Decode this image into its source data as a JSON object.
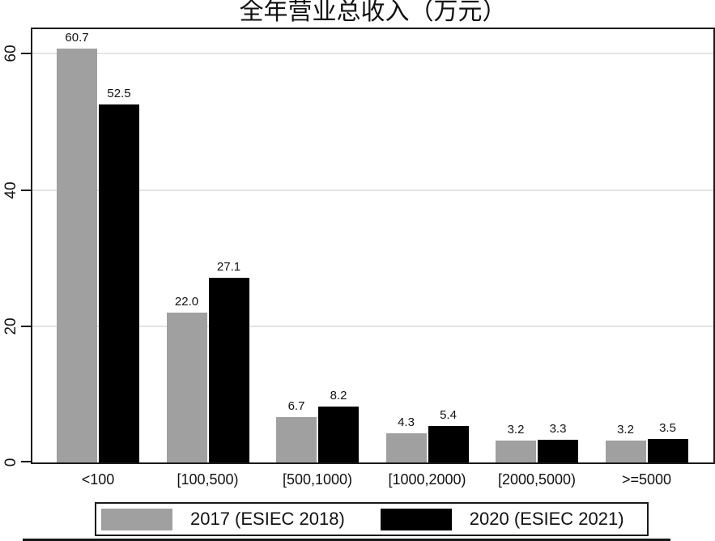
{
  "title": "全年营业总收入（万元）",
  "colors": {
    "series_2017": "#a0a0a0",
    "series_2020": "#000000",
    "grid": "#e4e4e4",
    "axis": "#1a1a1a",
    "background": "#ffffff"
  },
  "chart_data": {
    "type": "bar",
    "title": "全年营业总收入（万元）",
    "xlabel": "",
    "ylabel": "",
    "categories": [
      "<100",
      "[100,500)",
      "[500,1000)",
      "[1000,2000)",
      "[2000,5000)",
      ">=5000"
    ],
    "series": [
      {
        "name": "2017 (ESIEC 2018)",
        "color": "#a0a0a0",
        "values": [
          60.7,
          22.0,
          6.7,
          4.3,
          3.2,
          3.2
        ]
      },
      {
        "name": "2020 (ESIEC 2021)",
        "color": "#000000",
        "values": [
          52.5,
          27.1,
          8.2,
          5.4,
          3.3,
          3.5
        ]
      }
    ],
    "value_labels": true,
    "yticks": [
      0,
      20,
      40,
      60
    ],
    "ylim": [
      0,
      63.6
    ],
    "grid": true,
    "legend_position": "bottom"
  },
  "legend": {
    "items": [
      {
        "label": "2017 (ESIEC 2018)",
        "color": "#a0a0a0"
      },
      {
        "label": "2020 (ESIEC 2021)",
        "color": "#000000"
      }
    ]
  }
}
